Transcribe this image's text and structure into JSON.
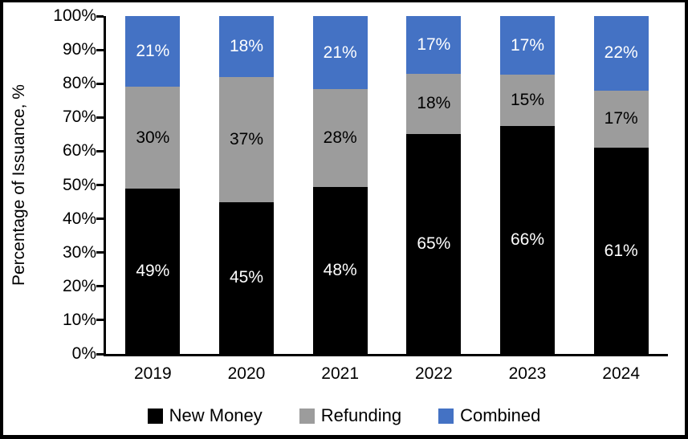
{
  "chart_data": {
    "type": "bar",
    "stacked": true,
    "title": "",
    "xlabel": "",
    "ylabel": "Percentage of Issuance, %",
    "ylim": [
      0,
      100
    ],
    "ytick_step": 10,
    "ytick_suffix": "%",
    "value_suffix": "%",
    "grid": false,
    "legend_position": "bottom",
    "categories": [
      "2019",
      "2020",
      "2021",
      "2022",
      "2023",
      "2024"
    ],
    "series": [
      {
        "name": "New Money",
        "color": "#000000",
        "label_color": "#ffffff",
        "values": [
          49,
          45,
          48,
          65,
          66,
          61
        ]
      },
      {
        "name": "Refunding",
        "color": "#9C9C9C",
        "label_color": "#000000",
        "values": [
          30,
          37,
          28,
          18,
          15,
          17
        ]
      },
      {
        "name": "Combined",
        "color": "#4472C4",
        "label_color": "#ffffff",
        "values": [
          21,
          18,
          21,
          17,
          17,
          22
        ]
      }
    ]
  }
}
